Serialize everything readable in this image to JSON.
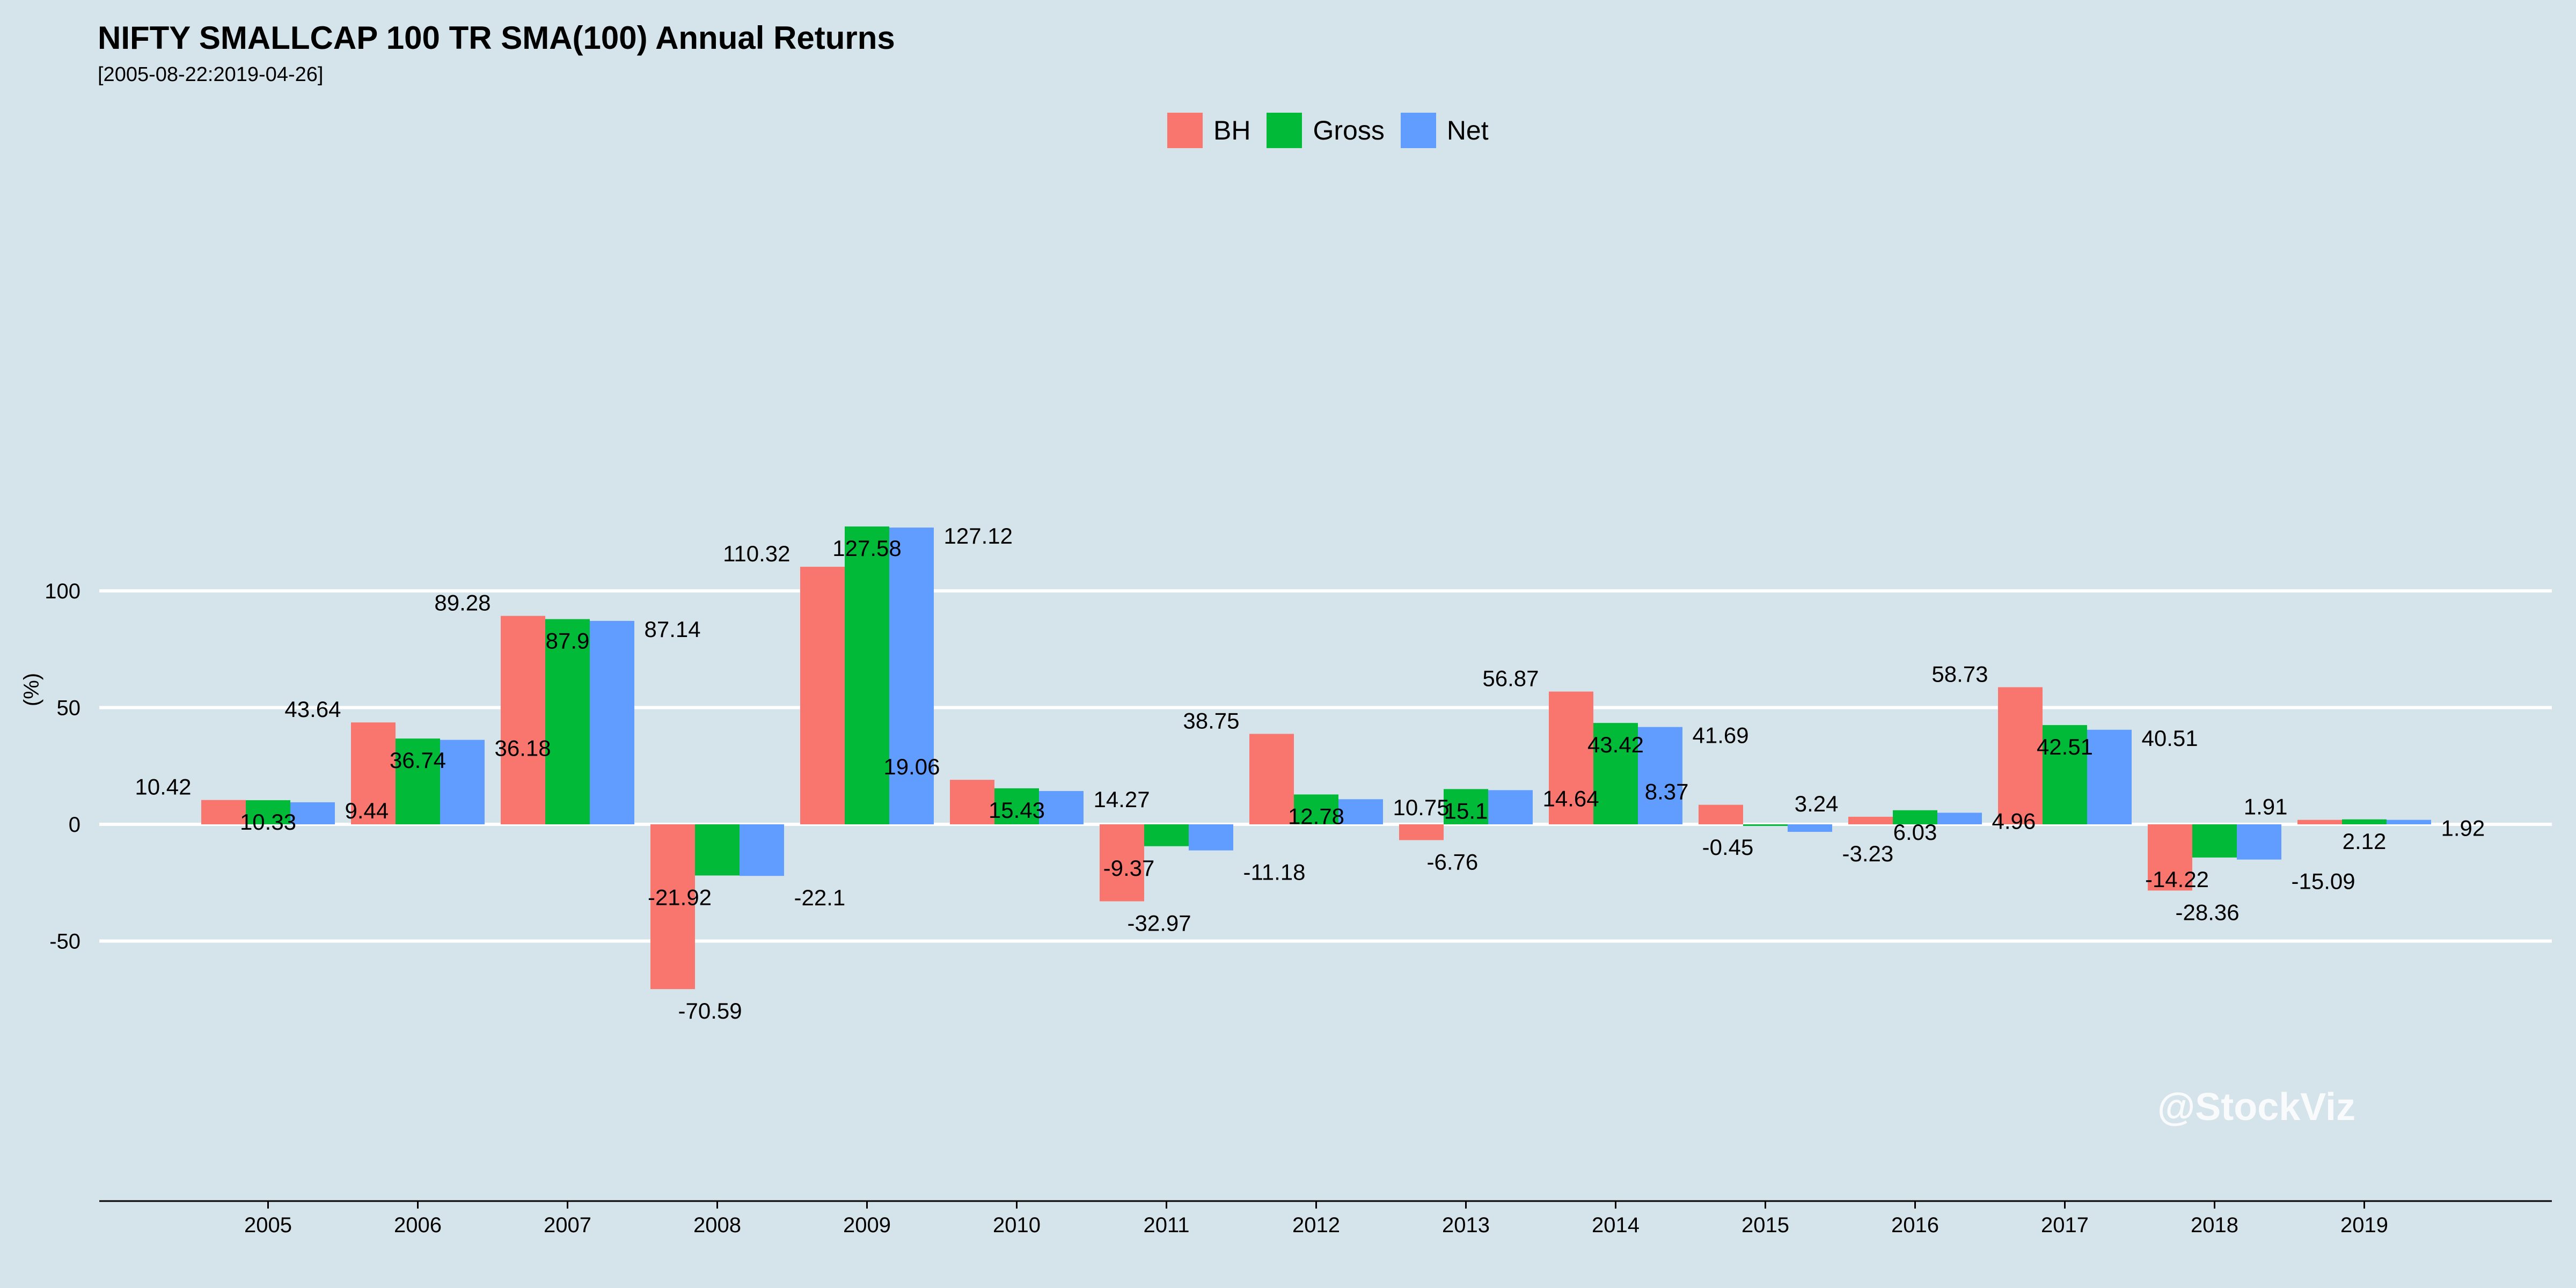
{
  "chart_data": {
    "type": "bar",
    "title": "NIFTY SMALLCAP 100 TR SMA(100) Annual Returns",
    "subtitle": "[2005-08-22:2019-04-26]",
    "xlabel": "",
    "ylabel": "(%)",
    "ylim": [
      -80,
      140
    ],
    "yticks": [
      -50,
      0,
      50,
      100
    ],
    "grid": true,
    "legend_position": "top",
    "categories": [
      "2005",
      "2006",
      "2007",
      "2008",
      "2009",
      "2010",
      "2011",
      "2012",
      "2013",
      "2014",
      "2015",
      "2016",
      "2017",
      "2018",
      "2019"
    ],
    "series": [
      {
        "name": "BH",
        "color": "#f8766d",
        "values": [
          10.42,
          43.64,
          89.28,
          -70.59,
          110.32,
          19.06,
          -32.97,
          38.75,
          -6.76,
          56.87,
          8.37,
          3.24,
          58.73,
          -28.36,
          1.91
        ],
        "labels": [
          "10.42",
          "43.64",
          "89.28",
          "-70.59",
          "110.32",
          "19.06",
          "-32.97",
          "38.75",
          "-6.76",
          "56.87",
          "8.37",
          "3.24",
          "58.73",
          "-28.36",
          "1.91"
        ]
      },
      {
        "name": "Gross",
        "color": "#00ba38",
        "values": [
          10.33,
          36.74,
          87.9,
          -21.92,
          127.58,
          15.43,
          -9.37,
          12.78,
          15.1,
          43.42,
          -0.45,
          6.03,
          42.51,
          -14.22,
          2.12
        ],
        "labels": [
          "10.33",
          "36.74",
          "87.9",
          "-21.92",
          "127.58",
          "15.43",
          "-9.37",
          "12.78",
          "15.1",
          "43.42",
          "-0.45",
          "6.03",
          "42.51",
          "-14.22",
          "2.12"
        ]
      },
      {
        "name": "Net",
        "color": "#619cff",
        "values": [
          9.44,
          36.18,
          87.14,
          -22.1,
          127.12,
          14.27,
          -11.18,
          10.75,
          14.64,
          41.69,
          -3.23,
          4.96,
          40.51,
          -15.09,
          1.92
        ],
        "labels": [
          "9.44",
          "36.18",
          "87.14",
          "-22.1",
          "127.12",
          "14.27",
          "-11.18",
          "10.75",
          "14.64",
          "41.69",
          "-3.23",
          "4.96",
          "40.51",
          "-15.09",
          "1.92"
        ]
      }
    ]
  },
  "watermark": "@StockViz"
}
